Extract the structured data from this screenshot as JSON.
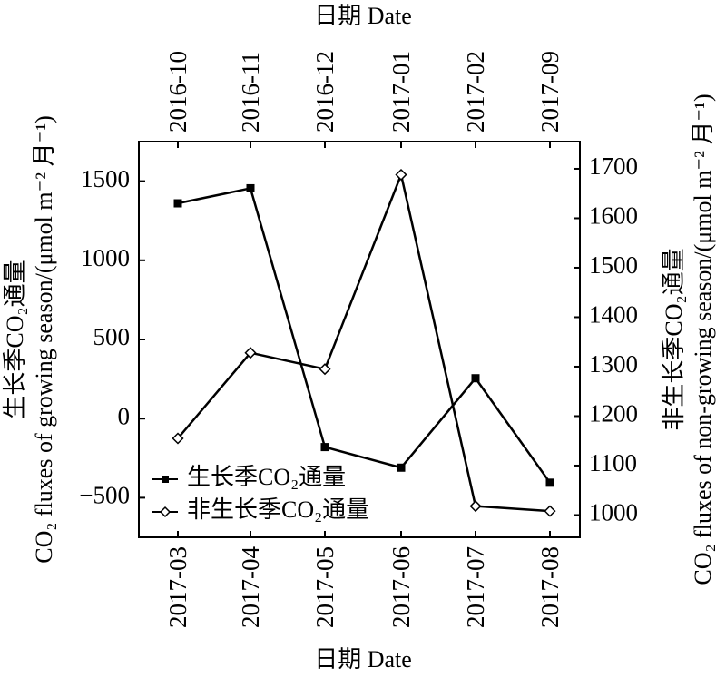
{
  "chart_data": {
    "type": "line",
    "top_axis": {
      "label": "日期 Date",
      "categories": [
        "2016-10",
        "2016-11",
        "2016-12",
        "2017-01",
        "2017-02",
        "2017-09"
      ]
    },
    "bottom_axis": {
      "label": "日期 Date",
      "categories": [
        "2017-03",
        "2017-04",
        "2017-05",
        "2017-06",
        "2017-07",
        "2017-08"
      ]
    },
    "left_axis": {
      "label_cn": "生长季CO₂通量",
      "label_en": "CO₂ fluxes of growing season/(μmol m⁻² 月⁻¹)",
      "ticks": [
        -500,
        0,
        500,
        1000,
        1500
      ],
      "ylim": [
        -750,
        1750
      ]
    },
    "right_axis": {
      "label_cn": "非生长季CO₂通量",
      "label_en": "CO₂ fluxes of non-growing season/(μmol m⁻² 月⁻¹)",
      "ticks": [
        1000,
        1100,
        1200,
        1300,
        1400,
        1500,
        1600,
        1700
      ],
      "ylim": [
        955,
        1755
      ]
    },
    "series": [
      {
        "name": "生长季CO₂通量",
        "axis": "left",
        "x_axis": "bottom",
        "marker": "filled-square",
        "color": "#000000",
        "values": [
          1360,
          1455,
          -180,
          -310,
          255,
          -405
        ]
      },
      {
        "name": "非生长季CO₂通量",
        "axis": "right",
        "x_axis": "top",
        "marker": "open-diamond",
        "color": "#000000",
        "values": [
          1155,
          1328,
          1295,
          1688,
          1018,
          1008
        ]
      }
    ],
    "legend": {
      "position": "bottom-left"
    },
    "grid": false
  }
}
